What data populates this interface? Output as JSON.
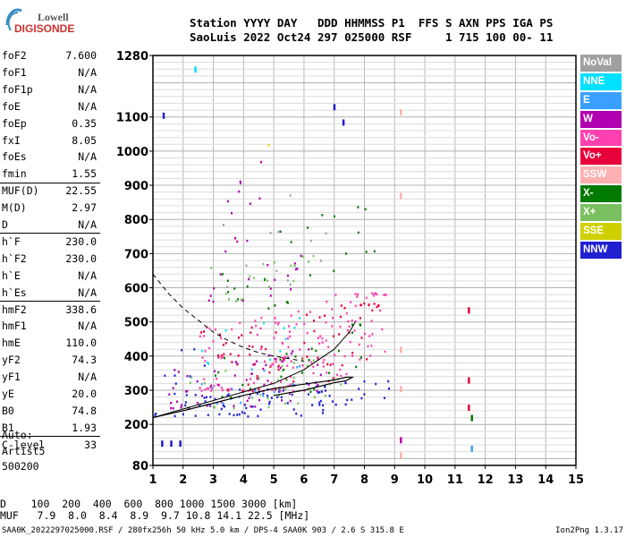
{
  "logo": {
    "line1": "Lowell",
    "line2": "DIGISONDE"
  },
  "header": {
    "row1": "Station YYYY DAY   DDD HHMMSS P1  FFS S AXN PPS IGA PS",
    "row2": "SaoLuis 2022 Oct24 297 025000 RSF     1 715 100 00- 11"
  },
  "params": [
    {
      "key": "foF2",
      "val": "7.600"
    },
    {
      "key": "foF1",
      "val": "N/A"
    },
    {
      "key": "foF1p",
      "val": "N/A"
    },
    {
      "key": "foE",
      "val": "N/A"
    },
    {
      "key": "foEp",
      "val": "0.35"
    },
    {
      "key": "fxI",
      "val": "8.05"
    },
    {
      "key": "foEs",
      "val": "N/A"
    },
    {
      "key": "fmin",
      "val": "1.55"
    },
    {
      "key": "MUF(D)",
      "val": "22.55"
    },
    {
      "key": "M(D)",
      "val": "2.97"
    },
    {
      "key": "D",
      "val": "N/A"
    },
    {
      "key": "h`F",
      "val": "230.0"
    },
    {
      "key": "h`F2",
      "val": "230.0"
    },
    {
      "key": "h`E",
      "val": "N/A"
    },
    {
      "key": "h`Es",
      "val": "N/A"
    },
    {
      "key": "hmF2",
      "val": "338.6"
    },
    {
      "key": "hmF1",
      "val": "N/A"
    },
    {
      "key": "hmE",
      "val": "110.0"
    },
    {
      "key": "yF2",
      "val": "74.3"
    },
    {
      "key": "yF1",
      "val": "N/A"
    },
    {
      "key": "yE",
      "val": "20.0"
    },
    {
      "key": "B0",
      "val": "74.8"
    },
    {
      "key": "B1",
      "val": "1.93"
    },
    {
      "key": "C-level",
      "val": "33"
    }
  ],
  "auto": {
    "l1": "Auto:",
    "l2": "Artist5",
    "l3": "500200"
  },
  "legend": [
    {
      "label": "NoVal",
      "color": "#a0a0a0",
      "text": "#ffffff"
    },
    {
      "label": "NNE",
      "color": "#00e0ff",
      "text": "#ffffff"
    },
    {
      "label": "E",
      "color": "#3aa0ff",
      "text": "#ffffff"
    },
    {
      "label": "W",
      "color": "#b000b0",
      "text": "#ffffff"
    },
    {
      "label": "Vo-",
      "color": "#ff40b0",
      "text": "#ffffff"
    },
    {
      "label": "Vo+",
      "color": "#e8003a",
      "text": "#ffffff"
    },
    {
      "label": "SSW",
      "color": "#ffb0b0",
      "text": "#ffffff"
    },
    {
      "label": "X-",
      "color": "#007a00",
      "text": "#ffffff"
    },
    {
      "label": "X+",
      "color": "#7ac060",
      "text": "#ffffff"
    },
    {
      "label": "SSE",
      "color": "#d0d000",
      "text": "#ffffff"
    },
    {
      "label": "NNW",
      "color": "#2020d0",
      "text": "#ffffff"
    }
  ],
  "bottom": {
    "d_row": "D    100  200  400  600  800 1000 1500 3000 [km]",
    "muf_row": "MUF   7.9  8.0  8.4  8.9  9.7 10.8 14.1 22.5 [MHz]"
  },
  "footer": {
    "left": "SAA0K_2022297025000.RSF / 280fx256h 50 kHz 5.0 km / DPS-4 SAA0K 903 / 2.6 S 315.8 E",
    "right": "Ion2Png 1.3.17"
  },
  "chart_data": {
    "type": "scatter",
    "xlim": [
      1,
      15
    ],
    "ylim": [
      80,
      1280
    ],
    "x_ticks": [
      1,
      2,
      3,
      4,
      5,
      6,
      7,
      8,
      9,
      10,
      11,
      12,
      13,
      14,
      15
    ],
    "y_ticks": [
      80,
      200,
      300,
      400,
      500,
      600,
      700,
      800,
      900,
      1000,
      1100,
      1280
    ],
    "grid": true,
    "fof2_marker_x": 9.2,
    "profile_curve": [
      [
        1.0,
        220
      ],
      [
        2.0,
        240
      ],
      [
        3.0,
        262
      ],
      [
        4.0,
        285
      ],
      [
        5.0,
        305
      ],
      [
        6.0,
        318
      ],
      [
        7.0,
        330
      ],
      [
        7.4,
        338
      ],
      [
        7.6,
        338
      ],
      [
        7.4,
        328
      ],
      [
        7.0,
        322
      ],
      [
        6.0,
        300
      ],
      [
        5.0,
        285
      ]
    ],
    "trace_curve": [
      [
        1.0,
        220
      ],
      [
        2.0,
        245
      ],
      [
        3.0,
        270
      ],
      [
        4.0,
        295
      ],
      [
        5.0,
        320
      ],
      [
        6.0,
        360
      ],
      [
        7.0,
        420
      ],
      [
        7.5,
        470
      ],
      [
        7.7,
        500
      ]
    ],
    "dashed_curve": [
      [
        1.0,
        640
      ],
      [
        1.5,
        585
      ],
      [
        2.0,
        540
      ],
      [
        2.5,
        505
      ],
      [
        3.0,
        470
      ],
      [
        3.5,
        445
      ],
      [
        4.0,
        425
      ],
      [
        4.5,
        410
      ],
      [
        5.0,
        400
      ],
      [
        6.0,
        385
      ]
    ],
    "echo_regions": [
      {
        "x": [
          1.0,
          9.0
        ],
        "y": [
          225,
          330
        ],
        "color": "#2020d0",
        "density": 0.9
      },
      {
        "x": [
          2.5,
          8.8
        ],
        "y": [
          300,
          590
        ],
        "color": "#ff40b0",
        "density": 0.7
      },
      {
        "x": [
          2.5,
          8.5
        ],
        "y": [
          300,
          560
        ],
        "color": "#e8003a",
        "density": 0.4
      },
      {
        "x": [
          1.5,
          7.0
        ],
        "y": [
          250,
          430
        ],
        "color": "#b000b0",
        "density": 0.5
      },
      {
        "x": [
          2.0,
          6.0
        ],
        "y": [
          260,
          380
        ],
        "color": "#3aa0ff",
        "density": 0.3
      },
      {
        "x": [
          2.0,
          7.5
        ],
        "y": [
          250,
          400
        ],
        "color": "#7ac060",
        "density": 0.35
      },
      {
        "x": [
          3.0,
          8.0
        ],
        "y": [
          280,
          500
        ],
        "color": "#007a00",
        "density": 0.2
      },
      {
        "x": [
          2.6,
          6.5
        ],
        "y": [
          560,
          720
        ],
        "color": "#7ac060",
        "density": 0.25
      },
      {
        "x": [
          2.6,
          6.0
        ],
        "y": [
          560,
          700
        ],
        "color": "#b000b0",
        "density": 0.3
      },
      {
        "x": [
          3.0,
          4.6
        ],
        "y": [
          700,
          980
        ],
        "color": "#b000b0",
        "density": 0.22
      },
      {
        "x": [
          3.0,
          8.5
        ],
        "y": [
          540,
          840
        ],
        "color": "#007a00",
        "density": 0.12
      },
      {
        "x": [
          2.5,
          6.0
        ],
        "y": [
          380,
          520
        ],
        "color": "#00e0ff",
        "density": 0.18
      },
      {
        "x": [
          4.8,
          5.4
        ],
        "y": [
          1020,
          1050
        ],
        "color": "#d0d000",
        "density": 0.6
      },
      {
        "x": [
          1.3,
          2.8
        ],
        "y": [
          300,
          460
        ],
        "color": "#2020d0",
        "density": 0.25
      },
      {
        "x": [
          3.0,
          7.0
        ],
        "y": [
          600,
          900
        ],
        "color": "#a0a0a0",
        "density": 0.08
      }
    ],
    "isolated_points": [
      {
        "x": 9.2,
        "y": 1115,
        "color": "#ffb0b0"
      },
      {
        "x": 9.2,
        "y": 870,
        "color": "#ffb0b0"
      },
      {
        "x": 9.2,
        "y": 420,
        "color": "#ffb0b0"
      },
      {
        "x": 9.2,
        "y": 305,
        "color": "#ffb0b0"
      },
      {
        "x": 9.2,
        "y": 155,
        "color": "#b000b0"
      },
      {
        "x": 9.2,
        "y": 110,
        "color": "#ffb0b0"
      },
      {
        "x": 11.45,
        "y": 535,
        "color": "#e8003a"
      },
      {
        "x": 11.45,
        "y": 330,
        "color": "#e8003a"
      },
      {
        "x": 11.45,
        "y": 250,
        "color": "#e8003a"
      },
      {
        "x": 11.55,
        "y": 220,
        "color": "#007a00"
      },
      {
        "x": 11.55,
        "y": 130,
        "color": "#3aa0ff"
      },
      {
        "x": 1.35,
        "y": 1105,
        "color": "#2020d0"
      },
      {
        "x": 2.4,
        "y": 1240,
        "color": "#00e0ff"
      },
      {
        "x": 7.0,
        "y": 1130,
        "color": "#2020d0"
      },
      {
        "x": 7.3,
        "y": 1085,
        "color": "#2020d0"
      },
      {
        "x": 1.9,
        "y": 145,
        "color": "#2020d0"
      },
      {
        "x": 1.6,
        "y": 145,
        "color": "#2020d0"
      },
      {
        "x": 1.3,
        "y": 145,
        "color": "#2020d0"
      }
    ]
  }
}
